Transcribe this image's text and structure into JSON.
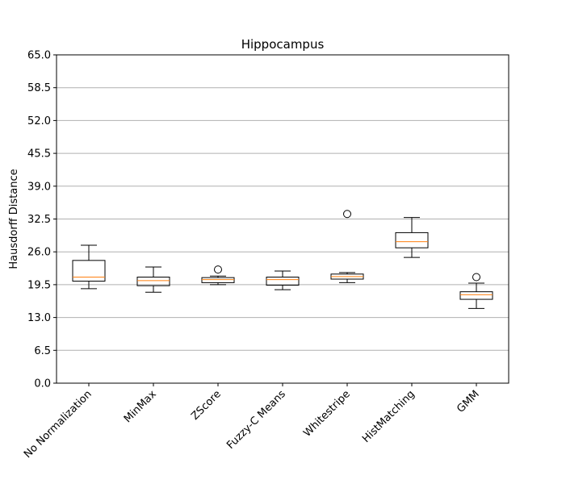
{
  "chart_data": {
    "type": "box",
    "title": "Hippocampus",
    "xlabel": "",
    "ylabel": "Hausdorff Distance",
    "ylim": [
      0,
      65
    ],
    "yticks": [
      "0.0",
      "6.5",
      "13.0",
      "19.5",
      "26.0",
      "32.5",
      "39.0",
      "45.5",
      "52.0",
      "58.5",
      "65.0"
    ],
    "grid": "y",
    "categories": [
      "No Normalization",
      "MinMax",
      "ZScore",
      "Fuzzy-C Means",
      "Whitestripe",
      "HistMatching",
      "GMM"
    ],
    "boxes": [
      {
        "whisker_low": 18.7,
        "q1": 20.2,
        "median": 21.0,
        "q3": 24.3,
        "whisker_high": 27.3,
        "outliers": []
      },
      {
        "whisker_low": 18.0,
        "q1": 19.3,
        "median": 20.3,
        "q3": 21.0,
        "whisker_high": 23.0,
        "outliers": []
      },
      {
        "whisker_low": 19.5,
        "q1": 19.9,
        "median": 20.5,
        "q3": 20.9,
        "whisker_high": 21.2,
        "outliers": [
          22.5
        ]
      },
      {
        "whisker_low": 18.5,
        "q1": 19.4,
        "median": 20.5,
        "q3": 21.0,
        "whisker_high": 22.2,
        "outliers": []
      },
      {
        "whisker_low": 19.9,
        "q1": 20.6,
        "median": 21.1,
        "q3": 21.6,
        "whisker_high": 21.9,
        "outliers": [
          33.5
        ]
      },
      {
        "whisker_low": 24.9,
        "q1": 26.8,
        "median": 28.0,
        "q3": 29.8,
        "whisker_high": 32.8,
        "outliers": []
      },
      {
        "whisker_low": 14.8,
        "q1": 16.6,
        "median": 17.5,
        "q3": 18.1,
        "whisker_high": 19.8,
        "outliers": [
          21.0
        ]
      }
    ],
    "colors": {
      "box": "#000000",
      "median": "#ff7f0e",
      "grid": "#b0b0b0"
    }
  }
}
